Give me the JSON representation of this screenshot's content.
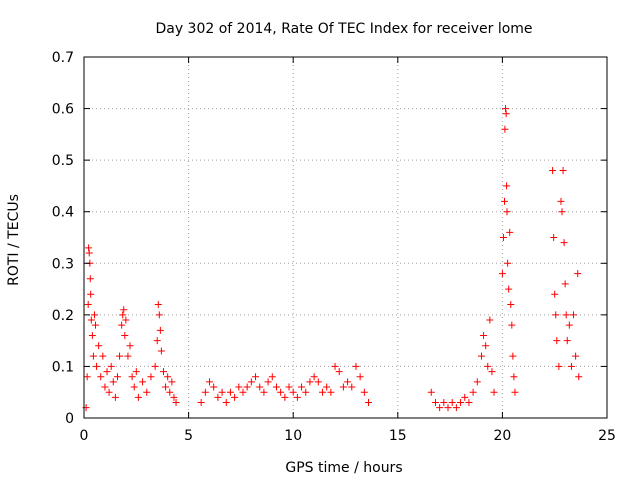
{
  "chart_data": {
    "type": "scatter",
    "title": "Day 302 of 2014, Rate Of TEC Index for receiver lome",
    "xlabel": "GPS time / hours",
    "ylabel": "ROTI / TECUs",
    "xlim": [
      0,
      25
    ],
    "ylim": [
      0,
      0.7
    ],
    "xticks": [
      "0",
      "5",
      "10",
      "15",
      "20",
      "25"
    ],
    "yticks": [
      "0",
      "0.1",
      "0.2",
      "0.3",
      "0.4",
      "0.5",
      "0.6",
      "0.7"
    ],
    "grid": true,
    "marker": "+",
    "color": "#ff0000",
    "series": [
      {
        "points": [
          [
            0.1,
            0.02
          ],
          [
            0.15,
            0.08
          ],
          [
            0.2,
            0.22
          ],
          [
            0.22,
            0.33
          ],
          [
            0.25,
            0.32
          ],
          [
            0.28,
            0.3
          ],
          [
            0.3,
            0.27
          ],
          [
            0.32,
            0.24
          ],
          [
            0.35,
            0.19
          ],
          [
            0.4,
            0.16
          ],
          [
            0.45,
            0.12
          ],
          [
            0.5,
            0.2
          ],
          [
            0.55,
            0.18
          ],
          [
            0.6,
            0.1
          ],
          [
            0.7,
            0.14
          ],
          [
            0.8,
            0.08
          ],
          [
            0.9,
            0.12
          ],
          [
            1.0,
            0.06
          ],
          [
            1.1,
            0.09
          ],
          [
            1.2,
            0.05
          ],
          [
            1.3,
            0.1
          ],
          [
            1.4,
            0.07
          ],
          [
            1.5,
            0.04
          ],
          [
            1.6,
            0.08
          ],
          [
            1.7,
            0.12
          ],
          [
            1.8,
            0.18
          ],
          [
            1.85,
            0.2
          ],
          [
            1.9,
            0.21
          ],
          [
            1.95,
            0.16
          ],
          [
            2.0,
            0.19
          ],
          [
            2.1,
            0.12
          ],
          [
            2.2,
            0.14
          ],
          [
            2.3,
            0.08
          ],
          [
            2.4,
            0.06
          ],
          [
            2.5,
            0.09
          ],
          [
            2.6,
            0.04
          ],
          [
            2.8,
            0.07
          ],
          [
            3.0,
            0.05
          ],
          [
            3.2,
            0.08
          ],
          [
            3.4,
            0.1
          ],
          [
            3.5,
            0.15
          ],
          [
            3.55,
            0.22
          ],
          [
            3.6,
            0.2
          ],
          [
            3.65,
            0.17
          ],
          [
            3.7,
            0.13
          ],
          [
            3.8,
            0.09
          ],
          [
            3.9,
            0.06
          ],
          [
            4.0,
            0.08
          ],
          [
            4.1,
            0.05
          ],
          [
            4.2,
            0.07
          ],
          [
            4.3,
            0.04
          ],
          [
            4.4,
            0.03
          ],
          [
            5.6,
            0.03
          ],
          [
            5.8,
            0.05
          ],
          [
            6.0,
            0.07
          ],
          [
            6.2,
            0.06
          ],
          [
            6.4,
            0.04
          ],
          [
            6.6,
            0.05
          ],
          [
            6.8,
            0.03
          ],
          [
            7.0,
            0.05
          ],
          [
            7.2,
            0.04
          ],
          [
            7.4,
            0.06
          ],
          [
            7.6,
            0.05
          ],
          [
            7.8,
            0.06
          ],
          [
            8.0,
            0.07
          ],
          [
            8.2,
            0.08
          ],
          [
            8.4,
            0.06
          ],
          [
            8.6,
            0.05
          ],
          [
            8.8,
            0.07
          ],
          [
            9.0,
            0.08
          ],
          [
            9.2,
            0.06
          ],
          [
            9.4,
            0.05
          ],
          [
            9.6,
            0.04
          ],
          [
            9.8,
            0.06
          ],
          [
            10.0,
            0.05
          ],
          [
            10.2,
            0.04
          ],
          [
            10.4,
            0.06
          ],
          [
            10.6,
            0.05
          ],
          [
            10.8,
            0.07
          ],
          [
            11.0,
            0.08
          ],
          [
            11.2,
            0.07
          ],
          [
            11.4,
            0.05
          ],
          [
            11.6,
            0.06
          ],
          [
            11.8,
            0.05
          ],
          [
            12.0,
            0.1
          ],
          [
            12.2,
            0.09
          ],
          [
            12.4,
            0.06
          ],
          [
            12.6,
            0.07
          ],
          [
            12.8,
            0.06
          ],
          [
            13.0,
            0.1
          ],
          [
            13.2,
            0.08
          ],
          [
            13.4,
            0.05
          ],
          [
            13.6,
            0.03
          ],
          [
            16.6,
            0.05
          ],
          [
            16.8,
            0.03
          ],
          [
            17.0,
            0.02
          ],
          [
            17.2,
            0.03
          ],
          [
            17.4,
            0.02
          ],
          [
            17.6,
            0.03
          ],
          [
            17.8,
            0.02
          ],
          [
            18.0,
            0.03
          ],
          [
            18.2,
            0.04
          ],
          [
            18.4,
            0.03
          ],
          [
            18.6,
            0.05
          ],
          [
            18.8,
            0.07
          ],
          [
            19.0,
            0.12
          ],
          [
            19.1,
            0.16
          ],
          [
            19.2,
            0.14
          ],
          [
            19.3,
            0.1
          ],
          [
            19.4,
            0.19
          ],
          [
            19.5,
            0.09
          ],
          [
            19.6,
            0.05
          ],
          [
            20.0,
            0.28
          ],
          [
            20.05,
            0.35
          ],
          [
            20.1,
            0.42
          ],
          [
            20.12,
            0.56
          ],
          [
            20.15,
            0.6
          ],
          [
            20.18,
            0.59
          ],
          [
            20.2,
            0.45
          ],
          [
            20.22,
            0.4
          ],
          [
            20.25,
            0.3
          ],
          [
            20.3,
            0.25
          ],
          [
            20.35,
            0.36
          ],
          [
            20.4,
            0.22
          ],
          [
            20.45,
            0.18
          ],
          [
            20.5,
            0.12
          ],
          [
            20.55,
            0.08
          ],
          [
            20.6,
            0.05
          ],
          [
            22.4,
            0.48
          ],
          [
            22.45,
            0.35
          ],
          [
            22.5,
            0.24
          ],
          [
            22.55,
            0.2
          ],
          [
            22.6,
            0.15
          ],
          [
            22.7,
            0.1
          ],
          [
            22.8,
            0.42
          ],
          [
            22.85,
            0.4
          ],
          [
            22.9,
            0.48
          ],
          [
            22.95,
            0.34
          ],
          [
            23.0,
            0.26
          ],
          [
            23.05,
            0.2
          ],
          [
            23.1,
            0.15
          ],
          [
            23.2,
            0.18
          ],
          [
            23.3,
            0.1
          ],
          [
            23.4,
            0.2
          ],
          [
            23.5,
            0.12
          ],
          [
            23.6,
            0.28
          ],
          [
            23.65,
            0.08
          ]
        ]
      }
    ]
  }
}
